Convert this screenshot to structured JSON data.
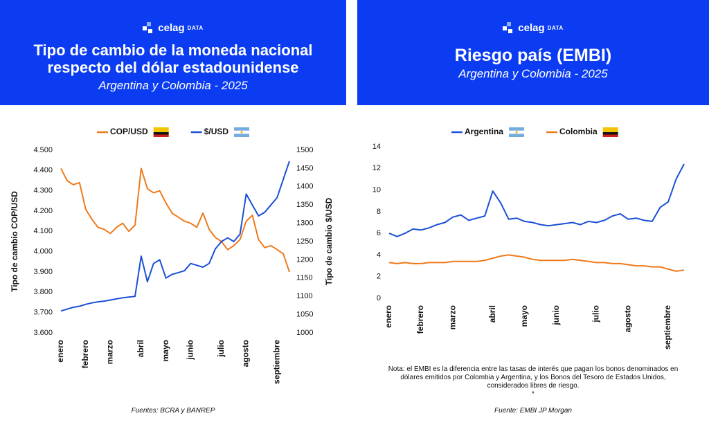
{
  "chart_data": [
    {
      "type": "line",
      "brand": "celag",
      "brand_sub": "DATA",
      "title": [
        "Tipo de cambio de la moneda nacional",
        "respecto del dólar estadounidense"
      ],
      "subtitle": "Argentina y Colombia - 2025",
      "categories": [
        "enero",
        null,
        null,
        null,
        "febrero",
        null,
        null,
        null,
        "marzo",
        null,
        null,
        null,
        null,
        "abril",
        null,
        null,
        null,
        "mayo",
        null,
        null,
        null,
        "junio",
        null,
        null,
        null,
        null,
        "julio",
        null,
        null,
        null,
        "agosto",
        null,
        null,
        null,
        null,
        "septiembre",
        null,
        null
      ],
      "series": [
        {
          "name": "COP/USD",
          "color": "#ee7a1a",
          "values": [
            4410,
            4350,
            4330,
            4340,
            4210,
            4160,
            4120,
            4110,
            4090,
            4120,
            4140,
            4100,
            4130,
            4410,
            4310,
            4290,
            4300,
            4240,
            4190,
            4170,
            4150,
            4140,
            4120,
            4190,
            4110,
            4070,
            4050,
            4010,
            4030,
            4060,
            4150,
            4180,
            4060,
            4020,
            4030,
            4010,
            3990,
            3900
          ]
        },
        {
          "name": "$/USD",
          "color": "#1a4fd6",
          "axis": "y2",
          "values": [
            1060,
            1065,
            1070,
            1073,
            1078,
            1082,
            1085,
            1087,
            1090,
            1093,
            1096,
            1098,
            1100,
            1210,
            1140,
            1190,
            1200,
            1150,
            1160,
            1165,
            1170,
            1190,
            1185,
            1180,
            1190,
            1230,
            1250,
            1260,
            1250,
            1270,
            1380,
            1350,
            1320,
            1330,
            1350,
            1370,
            1420,
            1470
          ]
        }
      ],
      "ylabel": "Tipo de cambio COP/USD",
      "y2label": "Tipo de cambio $/USD",
      "ylim": [
        3600,
        4500
      ],
      "yticks": [
        {
          "value": 3600,
          "label": "3.600"
        },
        {
          "value": 3700,
          "label": "3.700"
        },
        {
          "value": 3800,
          "label": "3.800"
        },
        {
          "value": 3900,
          "label": "3.900"
        },
        {
          "value": 4000,
          "label": "4.000"
        },
        {
          "value": 4100,
          "label": "4.100"
        },
        {
          "value": 4200,
          "label": "4.200"
        },
        {
          "value": 4300,
          "label": "4.300"
        },
        {
          "value": 4400,
          "label": "4.400"
        },
        {
          "value": 4500,
          "label": "4.500"
        }
      ],
      "y2lim": [
        1000,
        1500
      ],
      "y2ticks": [
        1000,
        1050,
        1100,
        1150,
        1200,
        1250,
        1300,
        1350,
        1400,
        1450,
        1500
      ],
      "source": "Fuentes: BCRA y BANREP"
    },
    {
      "type": "line",
      "brand": "celag",
      "brand_sub": "DATA",
      "title": [
        "Riesgo país (EMBI)"
      ],
      "subtitle": "Argentina y Colombia - 2025",
      "categories": [
        "enero",
        null,
        null,
        null,
        "febrero",
        null,
        null,
        null,
        "marzo",
        null,
        null,
        null,
        null,
        "abril",
        null,
        null,
        null,
        "mayo",
        null,
        null,
        null,
        "junio",
        null,
        null,
        null,
        null,
        "julio",
        null,
        null,
        null,
        "agosto",
        null,
        null,
        null,
        null,
        "septiembre",
        null,
        null
      ],
      "series": [
        {
          "name": "Argentina",
          "color": "#1a4fd6",
          "values": [
            6.0,
            5.7,
            6.0,
            6.4,
            6.3,
            6.5,
            6.8,
            7.0,
            7.5,
            7.7,
            7.2,
            7.4,
            7.6,
            9.9,
            8.8,
            7.3,
            7.4,
            7.1,
            7.0,
            6.8,
            6.7,
            6.8,
            6.9,
            7.0,
            6.8,
            7.1,
            7.0,
            7.2,
            7.6,
            7.8,
            7.3,
            7.4,
            7.2,
            7.1,
            8.4,
            8.9,
            11.0,
            12.4
          ]
        },
        {
          "name": "Colombia",
          "color": "#ee7a1a",
          "values": [
            3.3,
            3.2,
            3.3,
            3.2,
            3.2,
            3.3,
            3.3,
            3.3,
            3.4,
            3.4,
            3.4,
            3.4,
            3.5,
            3.7,
            3.9,
            4.0,
            3.9,
            3.8,
            3.6,
            3.5,
            3.5,
            3.5,
            3.5,
            3.6,
            3.5,
            3.4,
            3.3,
            3.3,
            3.2,
            3.2,
            3.1,
            3.0,
            3.0,
            2.9,
            2.9,
            2.7,
            2.5,
            2.6
          ]
        }
      ],
      "ylim": [
        0,
        14
      ],
      "yticks": [
        0,
        2,
        4,
        6,
        8,
        10,
        12,
        14
      ],
      "note": "Nota: el EMBI es la diferencia entre las tasas de interés que pagan los bonos denominados en dólares emitidos por Colombia y Argentina, y los Bonos del Tesoro de Estados Unidos, considerados libres de riesgo.",
      "note_mark": "*",
      "source": "Fuente: EMBI JP Morgan"
    }
  ]
}
